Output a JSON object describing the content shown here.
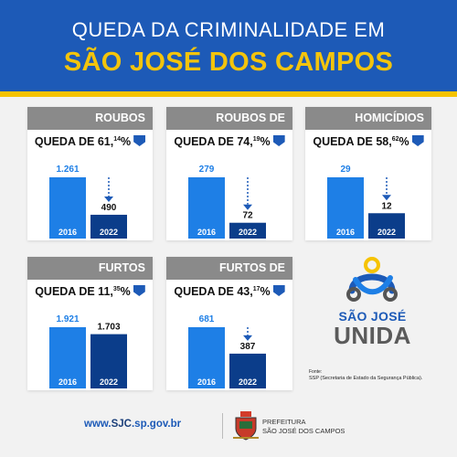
{
  "header": {
    "line1": "QUEDA DA CRIMINALIDADE EM",
    "line2": "SÃO JOSÉ DOS CAMPOS"
  },
  "colors": {
    "brand_blue": "#1d5ab7",
    "bar_2016": "#1e7fe6",
    "bar_2022": "#0b3d8a",
    "title_gray": "#8a8a8a",
    "accent_yellow": "#f6c300"
  },
  "chart_data": [
    {
      "type": "bar",
      "title": "ROUBOS",
      "subtitle": {
        "prefix": "QUEDA DE 61,",
        "sup": "14",
        "suffix": "%"
      },
      "categories": [
        "2016",
        "2022"
      ],
      "values": [
        1261,
        490
      ],
      "labels": [
        "1.261",
        "490"
      ]
    },
    {
      "type": "bar",
      "title": "ROUBOS DE VEÍCULOS",
      "subtitle": {
        "prefix": "QUEDA DE 74,",
        "sup": "19",
        "suffix": "%"
      },
      "categories": [
        "2016",
        "2022"
      ],
      "values": [
        279,
        72
      ],
      "labels": [
        "279",
        "72"
      ]
    },
    {
      "type": "bar",
      "title": "HOMICÍDIOS",
      "subtitle": {
        "prefix": "QUEDA DE 58,",
        "sup": "62",
        "suffix": "%"
      },
      "categories": [
        "2016",
        "2022"
      ],
      "values": [
        29,
        12
      ],
      "labels": [
        "29",
        "12"
      ]
    },
    {
      "type": "bar",
      "title": "FURTOS",
      "subtitle": {
        "prefix": "QUEDA DE 11,",
        "sup": "35",
        "suffix": "%"
      },
      "categories": [
        "2016",
        "2022"
      ],
      "values": [
        1921,
        1703
      ],
      "labels": [
        "1.921",
        "1.703"
      ]
    },
    {
      "type": "bar",
      "title": "FURTOS DE VEÍCULOS",
      "subtitle": {
        "prefix": "QUEDA DE 43,",
        "sup": "17",
        "suffix": "%"
      },
      "categories": [
        "2016",
        "2022"
      ],
      "values": [
        681,
        387
      ],
      "labels": [
        "681",
        "387"
      ]
    }
  ],
  "logo": {
    "line1": "SÃO JOSÉ",
    "line2": "UNIDA"
  },
  "source": {
    "label": "Fonte:",
    "text": "SSP (Secretaria de Estado da Segurança Pública)."
  },
  "footer": {
    "url_prefix": "www.",
    "url_domain": "SJC",
    "url_suffix": ".sp.gov.br",
    "pref_line1": "PREFEITURA",
    "pref_line2": "SÃO JOSÉ DOS CAMPOS"
  }
}
